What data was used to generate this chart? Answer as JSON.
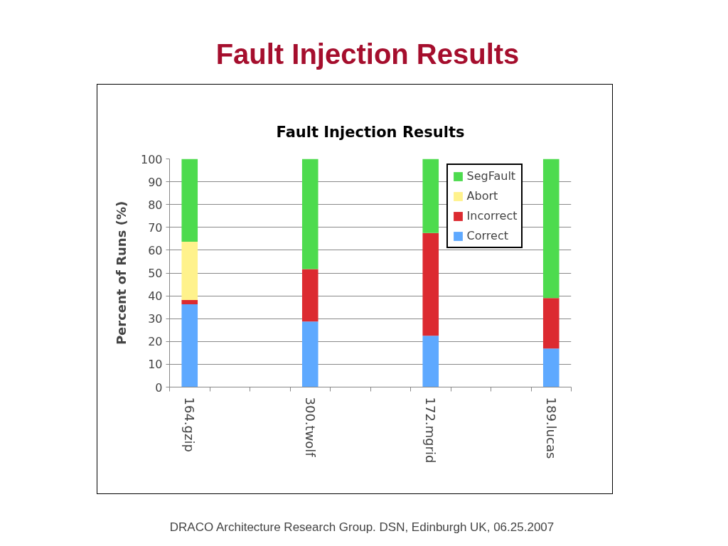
{
  "chart_data": {
    "type": "bar",
    "title": "Fault Injection Results",
    "subtitle": "Fault Injection Results",
    "ylabel": "Percent of Runs (%)",
    "categories": [
      "164.gzip",
      null,
      null,
      "300.twolf",
      null,
      null,
      "172.mgrid",
      null,
      null,
      "189.lucas"
    ],
    "stacked": true,
    "series": [
      {
        "name": "Correct",
        "color": "#5ea9ff",
        "values": [
          36.3,
          null,
          null,
          28.7,
          null,
          null,
          22.5,
          null,
          null,
          16.9
        ]
      },
      {
        "name": "Incorrect",
        "color": "#dc2a30",
        "values": [
          1.9,
          null,
          null,
          23.0,
          null,
          null,
          45.0,
          null,
          null,
          22.1
        ]
      },
      {
        "name": "Abort",
        "color": "#fff28c",
        "values": [
          25.5,
          null,
          null,
          0,
          null,
          null,
          0,
          null,
          null,
          0
        ]
      },
      {
        "name": "SegFault",
        "color": "#4ddb4e",
        "values": [
          36.3,
          null,
          null,
          48.3,
          null,
          null,
          32.5,
          null,
          null,
          61.0
        ]
      }
    ],
    "ylim": [
      0,
      100
    ],
    "yticks": [
      0,
      10,
      20,
      30,
      40,
      50,
      60,
      70,
      80,
      90,
      100
    ],
    "grid": "y",
    "legend": "top right",
    "annotations": [
      "DRACO Architecture Research Group.  DSN, Edinburgh UK, 06.25.2007"
    ]
  }
}
